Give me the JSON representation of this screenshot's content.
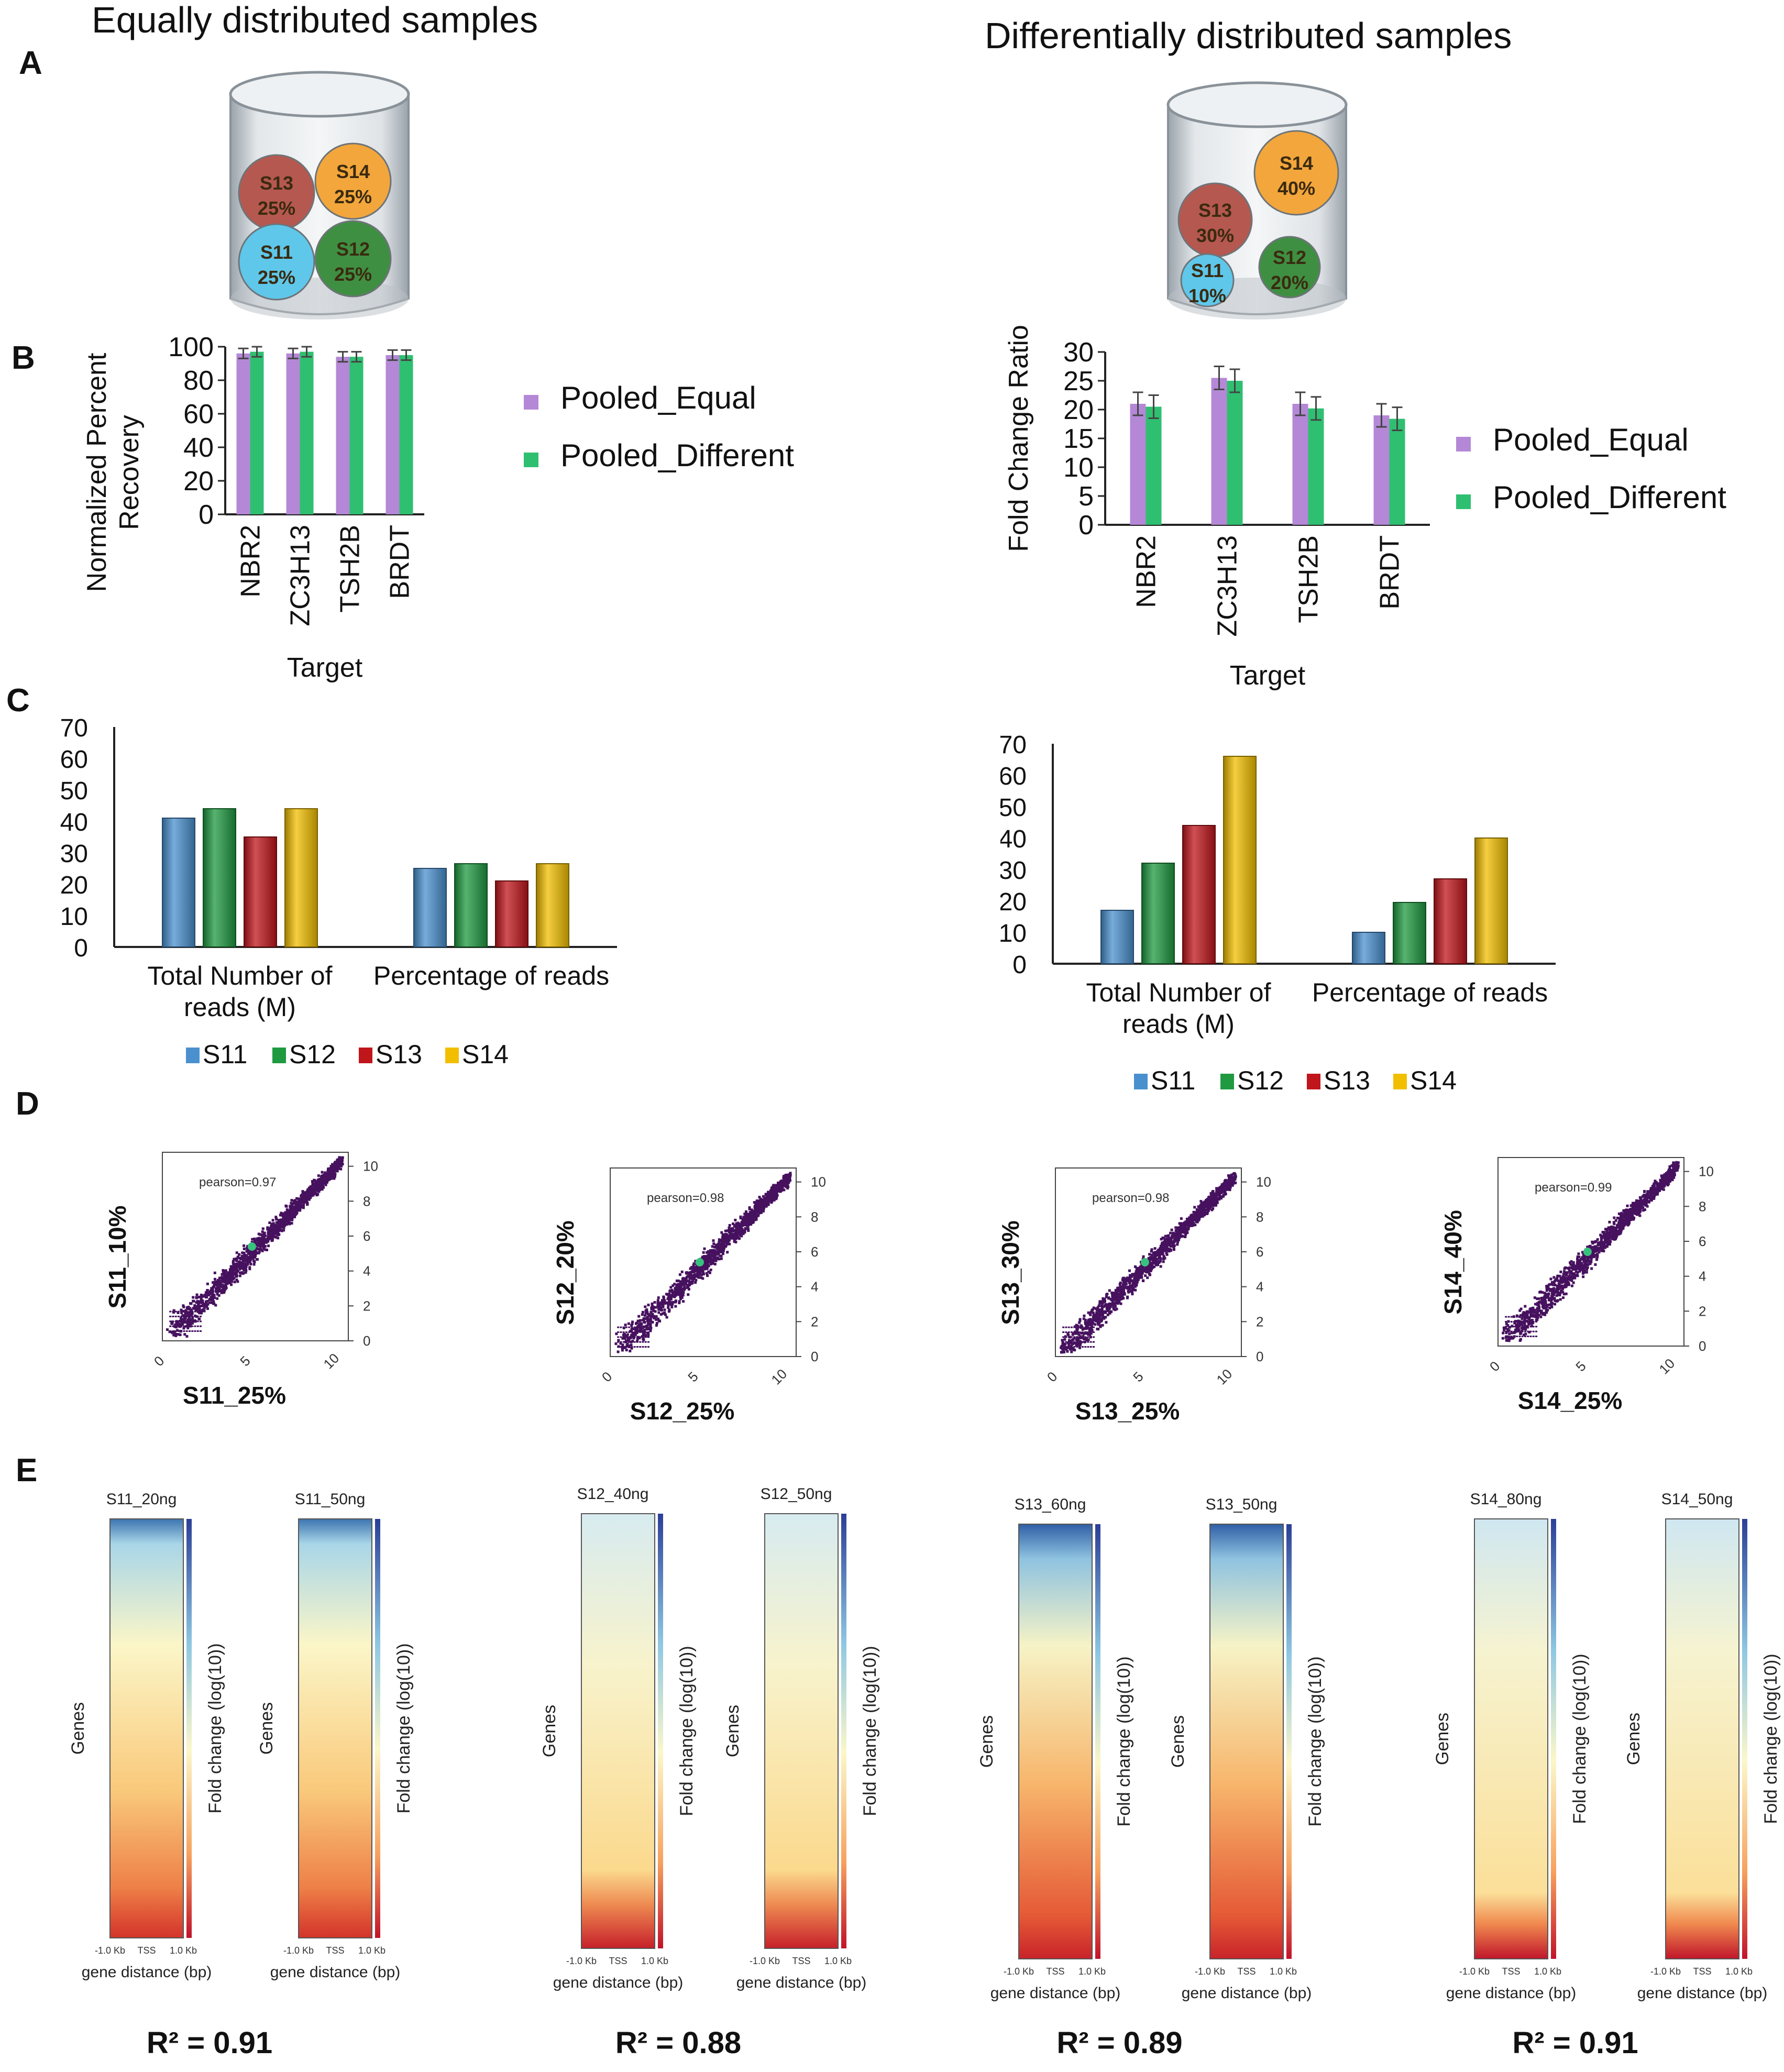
{
  "headers": {
    "left": "Equally distributed samples",
    "right": "Differentially distributed samples"
  },
  "panel_labels": [
    "A",
    "B",
    "C",
    "D",
    "E"
  ],
  "jar_left": [
    {
      "id": "S13",
      "pct": "25%",
      "color": "#b5584f"
    },
    {
      "id": "S14",
      "pct": "25%",
      "color": "#f3a63b"
    },
    {
      "id": "S11",
      "pct": "25%",
      "color": "#5ec7ea"
    },
    {
      "id": "S12",
      "pct": "25%",
      "color": "#3f8f42"
    }
  ],
  "jar_right": [
    {
      "id": "S14",
      "pct": "40%",
      "color": "#f3a63b"
    },
    {
      "id": "S13",
      "pct": "30%",
      "color": "#b5584f"
    },
    {
      "id": "S12",
      "pct": "20%",
      "color": "#3f8f42"
    },
    {
      "id": "S11",
      "pct": "10%",
      "color": "#5ec7ea"
    }
  ],
  "colors": {
    "pooled_equal": "#b488d6",
    "pooled_different": "#2fbf71",
    "S11": "#4a90cf",
    "S12": "#1f9a40",
    "S13": "#c0151b",
    "S14": "#f2bf00",
    "scatter": "#46115e"
  },
  "chart_data": [
    {
      "id": "B-left",
      "type": "bar",
      "title": "",
      "xlabel": "Target",
      "ylabel": "Normalized Percent Recovery",
      "ylabel_lines": [
        "Normalized Percent",
        "Recovery"
      ],
      "ylim": [
        0,
        100
      ],
      "yticks": [
        0,
        20,
        40,
        60,
        80,
        100
      ],
      "categories": [
        "NBR2",
        "ZC3H13",
        "TSH2B",
        "BRDT"
      ],
      "series": [
        {
          "name": "Pooled_Equal",
          "values": [
            96,
            96,
            94,
            95
          ],
          "errors": [
            3,
            3,
            3,
            3
          ]
        },
        {
          "name": "Pooled_Different",
          "values": [
            97,
            97,
            94,
            95
          ],
          "errors": [
            3,
            3,
            3,
            3
          ]
        }
      ],
      "legend": "right"
    },
    {
      "id": "B-right",
      "type": "bar",
      "title": "",
      "xlabel": "Target",
      "ylabel": "Fold Change Ratio",
      "ylim": [
        0,
        30
      ],
      "yticks": [
        0,
        5,
        10,
        15,
        20,
        25,
        30
      ],
      "categories": [
        "NBR2",
        "ZC3H13",
        "TSH2B",
        "BRDT"
      ],
      "series": [
        {
          "name": "Pooled_Equal",
          "values": [
            21,
            25.5,
            21,
            19
          ],
          "errors": [
            2,
            2,
            2,
            2
          ]
        },
        {
          "name": "Pooled_Different",
          "values": [
            20.5,
            25,
            20.2,
            18.4
          ],
          "errors": [
            2,
            2,
            2,
            2
          ]
        }
      ],
      "legend": "right"
    },
    {
      "id": "C-left",
      "type": "bar",
      "title": "",
      "ylim": [
        0,
        70
      ],
      "yticks": [
        0,
        10,
        20,
        30,
        40,
        50,
        60,
        70
      ],
      "categories": [
        [
          "Total Number of",
          "reads (M)"
        ],
        [
          "Percentage of reads"
        ]
      ],
      "series": [
        {
          "name": "S11",
          "values": [
            41,
            25
          ]
        },
        {
          "name": "S12",
          "values": [
            44,
            26.5
          ]
        },
        {
          "name": "S13",
          "values": [
            35,
            21
          ]
        },
        {
          "name": "S14",
          "values": [
            44,
            26.5
          ]
        }
      ],
      "legend": "bottom"
    },
    {
      "id": "C-right",
      "type": "bar",
      "title": "",
      "ylim": [
        0,
        70
      ],
      "yticks": [
        0,
        10,
        20,
        30,
        40,
        50,
        60,
        70
      ],
      "categories": [
        [
          "Total Number of",
          "reads (M)"
        ],
        [
          "Percentage of reads"
        ]
      ],
      "series": [
        {
          "name": "S11",
          "values": [
            17,
            10
          ]
        },
        {
          "name": "S12",
          "values": [
            32,
            19.5
          ]
        },
        {
          "name": "S13",
          "values": [
            44,
            27
          ]
        },
        {
          "name": "S14",
          "values": [
            66,
            40
          ]
        }
      ],
      "legend": "bottom"
    },
    {
      "id": "D",
      "type": "scatter",
      "xlim": [
        0,
        10
      ],
      "ylim": [
        0,
        10
      ],
      "xticks": [
        0,
        5,
        10
      ],
      "yticks": [
        0,
        2,
        4,
        6,
        8,
        10
      ],
      "plots": [
        {
          "xlabel": "S11_25%",
          "ylabel": "S11_10%",
          "annotation": "pearson=0.97"
        },
        {
          "xlabel": "S12_25%",
          "ylabel": "S12_20%",
          "annotation": "pearson=0.98"
        },
        {
          "xlabel": "S13_25%",
          "ylabel": "S13_30%",
          "annotation": "pearson=0.98"
        },
        {
          "xlabel": "S14_25%",
          "ylabel": "S14_40%",
          "annotation": "pearson=0.99"
        }
      ]
    },
    {
      "id": "E",
      "type": "heatmap",
      "ylabel": "Genes",
      "xlabel": "gene distance (bp)",
      "xticks": [
        "-1.0 Kb",
        "TSS",
        "1.0 Kb"
      ],
      "colorbar_label": "Fold change (log(10))",
      "colorbar_range": [
        0,
        4
      ],
      "groups": [
        {
          "r2": "R² = 0.91",
          "maps": [
            {
              "title": "S11_20ng"
            },
            {
              "title": "S11_50ng"
            }
          ]
        },
        {
          "r2": "R² = 0.88",
          "maps": [
            {
              "title": "S12_40ng"
            },
            {
              "title": "S12_50ng"
            }
          ]
        },
        {
          "r2": "R² = 0.89",
          "maps": [
            {
              "title": "S13_60ng"
            },
            {
              "title": "S13_50ng"
            }
          ]
        },
        {
          "r2": "R² = 0.91",
          "maps": [
            {
              "title": "S14_80ng"
            },
            {
              "title": "S14_50ng"
            }
          ]
        }
      ]
    }
  ]
}
